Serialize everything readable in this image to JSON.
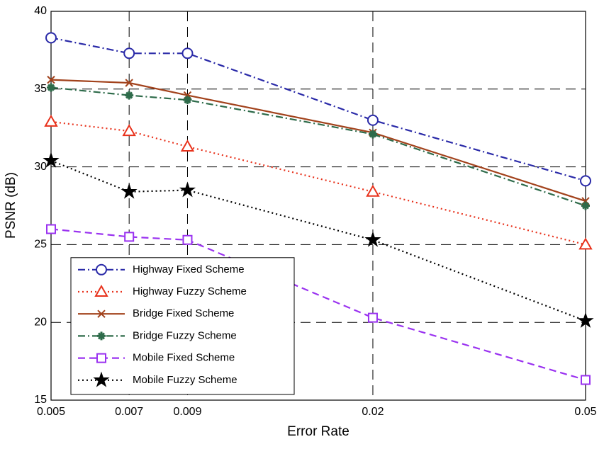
{
  "chart_data": {
    "type": "line",
    "x_label": "Error Rate",
    "y_label": "PSNR (dB)",
    "x": [
      0.005,
      0.007,
      0.009,
      0.02,
      0.05
    ],
    "xscale": "log",
    "xlim": [
      0.005,
      0.05
    ],
    "xticks": [
      0.005,
      0.007,
      0.009,
      0.02,
      0.05
    ],
    "ylim": [
      15,
      40
    ],
    "yticks": [
      15,
      20,
      25,
      30,
      35,
      40
    ],
    "grid": true,
    "legend": "lower left",
    "series": [
      {
        "name": "Highway Fixed Scheme",
        "color": "#2a2aa8",
        "marker": "circle",
        "line_style": "dashdot",
        "values": [
          38.3,
          37.3,
          37.3,
          33.0,
          29.1
        ]
      },
      {
        "name": "Highway Fuzzy Scheme",
        "color": "#e8321c",
        "marker": "triangle",
        "line_style": "dotted",
        "values": [
          32.9,
          32.3,
          31.3,
          28.4,
          25.0
        ]
      },
      {
        "name": "Bridge Fixed Scheme",
        "color": "#a2421c",
        "marker": "x",
        "line_style": "solid",
        "values": [
          35.6,
          35.4,
          34.6,
          32.2,
          27.8
        ]
      },
      {
        "name": "Bridge Fuzzy Scheme",
        "color": "#2e6b4a",
        "marker": "asterisk",
        "line_style": "dashdot",
        "values": [
          35.1,
          34.6,
          34.3,
          32.1,
          27.5
        ]
      },
      {
        "name": "Mobile Fixed Scheme",
        "color": "#9a32f0",
        "marker": "square",
        "line_style": "dashed",
        "values": [
          26.0,
          25.5,
          25.3,
          20.3,
          16.3
        ]
      },
      {
        "name": "Mobile Fuzzy Scheme",
        "color": "#000000",
        "marker": "star",
        "line_style": "dotted",
        "values": [
          30.4,
          28.4,
          28.5,
          25.3,
          20.1
        ]
      }
    ]
  }
}
